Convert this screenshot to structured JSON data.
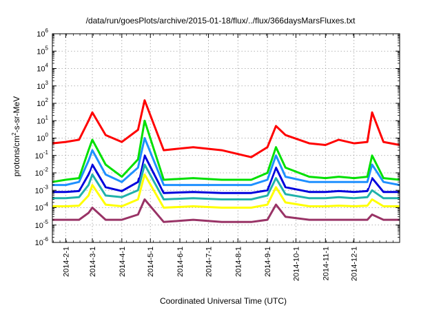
{
  "chart_data": {
    "type": "line",
    "title": "/data/run/goesPlots/archive/2015-01-18/flux/../flux/366daysMarsFluxes.txt",
    "xlabel": "Coordinated Universal Time (UTC)",
    "ylabel_parts": [
      "protons/cm",
      "2",
      "-s-sr-MeV"
    ],
    "y_scale": "log",
    "ylim": [
      1e-06,
      1000000.0
    ],
    "xlim": [
      "2014-01-18",
      "2015-01-18"
    ],
    "grid": true,
    "y_ticks": [
      {
        "base": "10",
        "exp": "-6"
      },
      {
        "base": "10",
        "exp": "-5"
      },
      {
        "base": "10",
        "exp": "-4"
      },
      {
        "base": "10",
        "exp": "-3"
      },
      {
        "base": "10",
        "exp": "-2"
      },
      {
        "base": "10",
        "exp": "-1"
      },
      {
        "base": "10",
        "exp": "0"
      },
      {
        "base": "10",
        "exp": "1"
      },
      {
        "base": "10",
        "exp": "2"
      },
      {
        "base": "10",
        "exp": "3"
      },
      {
        "base": "10",
        "exp": "4"
      },
      {
        "base": "10",
        "exp": "5"
      },
      {
        "base": "10",
        "exp": "6"
      }
    ],
    "x_ticks": [
      {
        "date": "2014-02-01",
        "label": "2014-2-1"
      },
      {
        "date": "2014-03-01",
        "label": "2014-3-1"
      },
      {
        "date": "2014-04-01",
        "label": "2014-4-1"
      },
      {
        "date": "2014-05-01",
        "label": "2014-5-1"
      },
      {
        "date": "2014-06-01",
        "label": "2014-6-1"
      },
      {
        "date": "2014-07-01",
        "label": "2014-7-1"
      },
      {
        "date": "2014-08-01",
        "label": "2014-8-1"
      },
      {
        "date": "2014-09-01",
        "label": "2014-9-1"
      },
      {
        "date": "2014-10-01",
        "label": "2014-10-1"
      },
      {
        "date": "2014-11-01",
        "label": "2014-11-1"
      },
      {
        "date": "2014-12-01",
        "label": "2014-12-1"
      }
    ],
    "series": [
      {
        "color": "#ff0000",
        "x": [
          "2014-01-18",
          "2014-02-01",
          "2014-02-15",
          "2014-02-25",
          "2014-03-01",
          "2014-03-15",
          "2014-04-01",
          "2014-04-18",
          "2014-04-25",
          "2014-05-15",
          "2014-06-15",
          "2014-07-15",
          "2014-08-15",
          "2014-09-01",
          "2014-09-10",
          "2014-09-20",
          "2014-10-15",
          "2014-11-01",
          "2014-11-15",
          "2014-12-01",
          "2014-12-15",
          "2014-12-20",
          "2015-01-01",
          "2015-01-18"
        ],
        "values": [
          0.5,
          0.6,
          0.8,
          10,
          30,
          1.5,
          0.6,
          3,
          150,
          0.2,
          0.3,
          0.2,
          0.08,
          0.3,
          5,
          1.5,
          0.5,
          0.4,
          0.8,
          0.5,
          0.6,
          30,
          0.6,
          0.4
        ]
      },
      {
        "color": "#00e000",
        "x": [
          "2014-01-18",
          "2014-02-01",
          "2014-02-15",
          "2014-02-25",
          "2014-03-01",
          "2014-03-15",
          "2014-04-01",
          "2014-04-18",
          "2014-04-25",
          "2014-05-15",
          "2014-06-15",
          "2014-07-15",
          "2014-08-15",
          "2014-09-01",
          "2014-09-10",
          "2014-09-20",
          "2014-10-15",
          "2014-11-01",
          "2014-11-15",
          "2014-12-01",
          "2014-12-15",
          "2014-12-20",
          "2015-01-01",
          "2015-01-18"
        ],
        "values": [
          0.003,
          0.004,
          0.005,
          0.2,
          0.8,
          0.03,
          0.006,
          0.06,
          10,
          0.004,
          0.005,
          0.004,
          0.004,
          0.01,
          0.3,
          0.02,
          0.006,
          0.005,
          0.006,
          0.005,
          0.006,
          0.1,
          0.005,
          0.004
        ]
      },
      {
        "color": "#1e90ff",
        "x": [
          "2014-01-18",
          "2014-02-01",
          "2014-02-15",
          "2014-02-25",
          "2014-03-01",
          "2014-03-15",
          "2014-04-01",
          "2014-04-18",
          "2014-04-25",
          "2014-05-15",
          "2014-06-15",
          "2014-07-15",
          "2014-08-15",
          "2014-09-01",
          "2014-09-10",
          "2014-09-20",
          "2014-10-15",
          "2014-11-01",
          "2014-11-15",
          "2014-12-01",
          "2014-12-15",
          "2014-12-20",
          "2015-01-01",
          "2015-01-18"
        ],
        "values": [
          0.002,
          0.002,
          0.003,
          0.05,
          0.2,
          0.008,
          0.003,
          0.02,
          1,
          0.002,
          0.002,
          0.002,
          0.002,
          0.004,
          0.1,
          0.006,
          0.003,
          0.003,
          0.003,
          0.003,
          0.003,
          0.03,
          0.003,
          0.002
        ]
      },
      {
        "color": "#ffffff",
        "x": [
          "2014-01-18",
          "2014-02-01",
          "2014-02-15",
          "2014-02-25",
          "2014-03-01",
          "2014-03-15",
          "2014-04-01",
          "2014-04-18",
          "2014-04-25",
          "2014-05-15",
          "2014-06-15",
          "2014-07-15",
          "2014-08-15",
          "2014-09-01",
          "2014-09-10",
          "2014-09-20",
          "2014-10-15",
          "2014-11-01",
          "2014-11-15",
          "2014-12-01",
          "2014-12-15",
          "2014-12-20",
          "2015-01-01",
          "2015-01-18"
        ],
        "values": [
          0.0013,
          0.0013,
          0.0015,
          0.015,
          0.06,
          0.003,
          0.0015,
          0.006,
          0.3,
          0.0012,
          0.0013,
          0.0012,
          0.0012,
          0.002,
          0.04,
          0.003,
          0.0015,
          0.0014,
          0.0015,
          0.0014,
          0.0015,
          0.01,
          0.0014,
          0.0013
        ]
      },
      {
        "color": "#0000dd",
        "x": [
          "2014-01-18",
          "2014-02-01",
          "2014-02-15",
          "2014-02-25",
          "2014-03-01",
          "2014-03-15",
          "2014-04-01",
          "2014-04-18",
          "2014-04-25",
          "2014-05-15",
          "2014-06-15",
          "2014-07-15",
          "2014-08-15",
          "2014-09-01",
          "2014-09-10",
          "2014-09-20",
          "2014-10-15",
          "2014-11-01",
          "2014-11-15",
          "2014-12-01",
          "2014-12-15",
          "2014-12-20",
          "2015-01-01",
          "2015-01-18"
        ],
        "values": [
          0.0008,
          0.0008,
          0.0009,
          0.008,
          0.03,
          0.0015,
          0.0009,
          0.003,
          0.1,
          0.0007,
          0.0008,
          0.0007,
          0.0007,
          0.001,
          0.02,
          0.0015,
          0.0008,
          0.0008,
          0.0009,
          0.0008,
          0.0009,
          0.005,
          0.0008,
          0.0008
        ]
      },
      {
        "color": "#20b2aa",
        "x": [
          "2014-01-18",
          "2014-02-01",
          "2014-02-15",
          "2014-02-25",
          "2014-03-01",
          "2014-03-15",
          "2014-04-01",
          "2014-04-18",
          "2014-04-25",
          "2014-05-15",
          "2014-06-15",
          "2014-07-15",
          "2014-08-15",
          "2014-09-01",
          "2014-09-10",
          "2014-09-20",
          "2014-10-15",
          "2014-11-01",
          "2014-11-15",
          "2014-12-01",
          "2014-12-15",
          "2014-12-20",
          "2015-01-01",
          "2015-01-18"
        ],
        "values": [
          0.00035,
          0.00035,
          0.0004,
          0.002,
          0.008,
          0.0005,
          0.0004,
          0.001,
          0.03,
          0.0003,
          0.00035,
          0.0003,
          0.0003,
          0.0005,
          0.005,
          0.0006,
          0.00035,
          0.00035,
          0.0004,
          0.00035,
          0.0004,
          0.001,
          0.00035,
          0.00035
        ]
      },
      {
        "color": "#ffff00",
        "x": [
          "2014-01-18",
          "2014-02-01",
          "2014-02-15",
          "2014-02-25",
          "2014-03-01",
          "2014-03-15",
          "2014-04-01",
          "2014-04-18",
          "2014-04-25",
          "2014-05-15",
          "2014-06-15",
          "2014-07-15",
          "2014-08-15",
          "2014-09-01",
          "2014-09-10",
          "2014-09-20",
          "2014-10-15",
          "2014-11-01",
          "2014-11-15",
          "2014-12-01",
          "2014-12-15",
          "2014-12-20",
          "2015-01-01",
          "2015-01-18"
        ],
        "values": [
          0.00012,
          0.00012,
          0.00013,
          0.0005,
          0.002,
          0.00015,
          0.00012,
          0.0003,
          0.008,
          0.0001,
          0.00012,
          0.0001,
          0.0001,
          0.00015,
          0.0015,
          0.0002,
          0.00012,
          0.00012,
          0.00013,
          0.00012,
          0.00013,
          0.0003,
          0.00012,
          0.00012
        ]
      },
      {
        "color": "#993366",
        "x": [
          "2014-01-18",
          "2014-02-01",
          "2014-02-15",
          "2014-02-25",
          "2014-03-01",
          "2014-03-15",
          "2014-04-01",
          "2014-04-18",
          "2014-04-25",
          "2014-05-15",
          "2014-06-15",
          "2014-07-15",
          "2014-08-15",
          "2014-09-01",
          "2014-09-10",
          "2014-09-20",
          "2014-10-15",
          "2014-11-01",
          "2014-11-15",
          "2014-12-01",
          "2014-12-15",
          "2014-12-20",
          "2015-01-01",
          "2015-01-18"
        ],
        "values": [
          2e-05,
          2e-05,
          2e-05,
          5e-05,
          0.0001,
          2e-05,
          2e-05,
          4e-05,
          0.0003,
          1.5e-05,
          2e-05,
          1.5e-05,
          1.5e-05,
          2e-05,
          0.00015,
          3e-05,
          2e-05,
          2e-05,
          2e-05,
          2e-05,
          2e-05,
          4e-05,
          2e-05,
          2e-05
        ]
      }
    ]
  }
}
